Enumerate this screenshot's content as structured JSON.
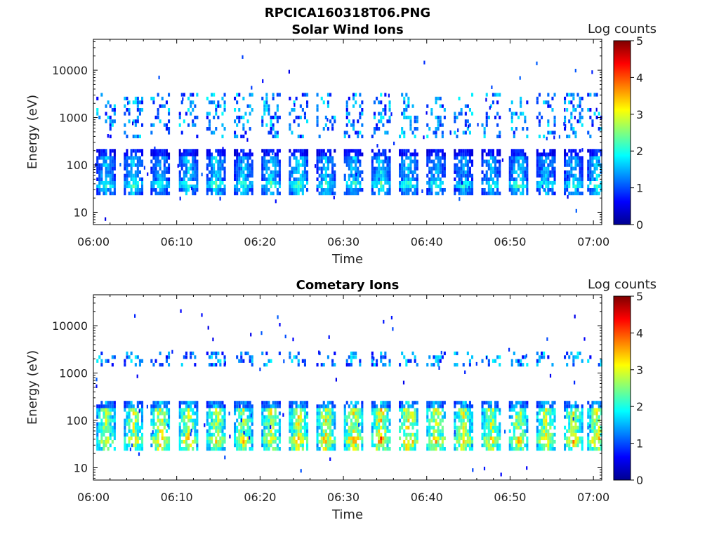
{
  "figure": {
    "filename_title": "RPCICA160318T06.PNG"
  },
  "chart_data": [
    {
      "type": "heatmap",
      "title": "Solar Wind Ions",
      "xlabel": "Time",
      "ylabel": "Energy (eV)",
      "x_ticks": [
        "06:00",
        "06:10",
        "06:20",
        "06:30",
        "06:40",
        "06:50",
        "07:00"
      ],
      "y_ticks": [
        "10",
        "100",
        "1000",
        "10000"
      ],
      "y_scale": "log",
      "ylim": [
        5.5,
        45000
      ],
      "xlim_minutes": [
        0,
        61
      ],
      "colorbar": {
        "label": "Log counts",
        "ticks": [
          "0",
          "1",
          "2",
          "3",
          "4",
          "5"
        ],
        "range": [
          0,
          5
        ],
        "colormap": "jet"
      },
      "sweep_period_min": 3.2,
      "bursts": [
        {
          "t_min": 1.4,
          "peak_log": 1.9
        },
        {
          "t_min": 4.7,
          "peak_log": 2.0
        },
        {
          "t_min": 7.9,
          "peak_log": 1.8
        },
        {
          "t_min": 11.3,
          "peak_log": 2.0
        },
        {
          "t_min": 14.6,
          "peak_log": 2.1
        },
        {
          "t_min": 17.9,
          "peak_log": 1.9
        },
        {
          "t_min": 21.2,
          "peak_log": 2.0
        },
        {
          "t_min": 24.5,
          "peak_log": 2.1
        },
        {
          "t_min": 27.8,
          "peak_log": 1.9
        },
        {
          "t_min": 31.1,
          "peak_log": 2.0
        },
        {
          "t_min": 34.4,
          "peak_log": 2.1
        },
        {
          "t_min": 37.7,
          "peak_log": 2.0
        },
        {
          "t_min": 41.0,
          "peak_log": 1.9
        },
        {
          "t_min": 44.3,
          "peak_log": 1.8
        },
        {
          "t_min": 47.6,
          "peak_log": 1.9
        },
        {
          "t_min": 50.9,
          "peak_log": 2.0
        },
        {
          "t_min": 54.2,
          "peak_log": 1.9
        },
        {
          "t_min": 57.5,
          "peak_log": 1.9
        },
        {
          "t_min": 60.3,
          "peak_log": 2.0
        }
      ],
      "energy_bands_eV": {
        "main": [
          25,
          230
        ],
        "secondary": [
          400,
          3200
        ],
        "peak_line": 40
      }
    },
    {
      "type": "heatmap",
      "title": "Cometary Ions",
      "xlabel": "Time",
      "ylabel": "Energy (eV)",
      "x_ticks": [
        "06:00",
        "06:10",
        "06:20",
        "06:30",
        "06:40",
        "06:50",
        "07:00"
      ],
      "y_ticks": [
        "10",
        "100",
        "1000",
        "10000"
      ],
      "y_scale": "log",
      "ylim": [
        5.5,
        45000
      ],
      "xlim_minutes": [
        0,
        61
      ],
      "colorbar": {
        "label": "Log counts",
        "ticks": [
          "0",
          "1",
          "2",
          "3",
          "4",
          "5"
        ],
        "range": [
          0,
          5
        ],
        "colormap": "jet"
      },
      "sweep_period_min": 3.2,
      "bursts": [
        {
          "t_min": 1.4,
          "peak_log": 3.2
        },
        {
          "t_min": 4.7,
          "peak_log": 3.4
        },
        {
          "t_min": 7.9,
          "peak_log": 3.6
        },
        {
          "t_min": 11.3,
          "peak_log": 3.5
        },
        {
          "t_min": 14.6,
          "peak_log": 3.4
        },
        {
          "t_min": 17.9,
          "peak_log": 3.3
        },
        {
          "t_min": 21.2,
          "peak_log": 3.4
        },
        {
          "t_min": 24.5,
          "peak_log": 3.6
        },
        {
          "t_min": 27.8,
          "peak_log": 3.5
        },
        {
          "t_min": 31.1,
          "peak_log": 3.7
        },
        {
          "t_min": 34.4,
          "peak_log": 3.8
        },
        {
          "t_min": 37.7,
          "peak_log": 3.9
        },
        {
          "t_min": 41.0,
          "peak_log": 3.6
        },
        {
          "t_min": 44.3,
          "peak_log": 3.5
        },
        {
          "t_min": 47.6,
          "peak_log": 3.4
        },
        {
          "t_min": 50.9,
          "peak_log": 3.4
        },
        {
          "t_min": 54.2,
          "peak_log": 3.5
        },
        {
          "t_min": 57.5,
          "peak_log": 3.4
        },
        {
          "t_min": 60.3,
          "peak_log": 3.5
        }
      ],
      "energy_bands_eV": {
        "main": [
          25,
          280
        ],
        "secondary": [
          1500,
          3000
        ],
        "peak_line": 40
      }
    }
  ]
}
